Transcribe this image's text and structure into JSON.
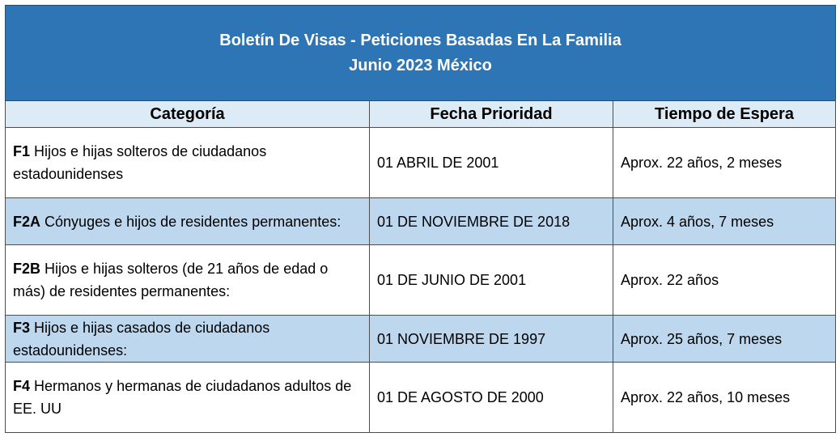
{
  "title": {
    "line1": "Boletín De Visas - Peticiones Basadas En La Familia",
    "line2": "Junio 2023 México"
  },
  "headers": [
    "Categoría",
    "Fecha Prioridad",
    "Tiempo de Espera"
  ],
  "rows": [
    {
      "code": "F1",
      "description": "Hijos e hijas solteros de ciudadanos estadounidenses",
      "date": "01 ABRIL DE 2001",
      "wait": "Aprox. 22 años, 2 meses"
    },
    {
      "code": "F2A",
      "description": "Cónyuges e hijos de residentes permanentes:",
      "date": "01 DE NOVIEMBRE DE 2018",
      "wait": "Aprox. 4 años, 7 meses"
    },
    {
      "code": "F2B",
      "description": "Hijos e hijas solteros (de 21 años de edad o más) de residentes permanentes:",
      "date": "01 DE JUNIO DE 2001",
      "wait": "Aprox. 22 años"
    },
    {
      "code": "F3",
      "description": "Hijos e hijas casados de ciudadanos estadounidenses:",
      "date": "01 NOVIEMBRE DE 1997",
      "wait": "Aprox. 25 años, 7 meses"
    },
    {
      "code": "F4",
      "description": "Hermanos y hermanas de ciudadanos adultos de EE. UU",
      "date": "01 DE AGOSTO DE 2000",
      "wait": "Aprox. 22 años, 10 meses"
    }
  ],
  "colors": {
    "title_bg": "#2E75B6",
    "header_bg": "#DDEBF7",
    "alt_row_bg": "#BDD7EE"
  }
}
